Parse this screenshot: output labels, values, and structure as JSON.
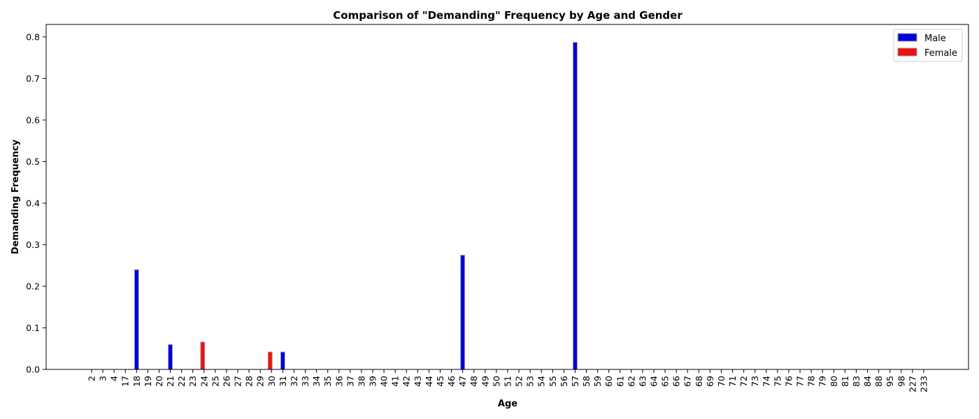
{
  "chart_data": {
    "type": "bar",
    "title": "Comparison of \"Demanding\" Frequency by Age and Gender",
    "xlabel": "Age",
    "ylabel": "Demanding Frequency",
    "categories": [
      "2",
      "3",
      "4",
      "17",
      "18",
      "19",
      "20",
      "21",
      "22",
      "23",
      "24",
      "25",
      "26",
      "27",
      "28",
      "29",
      "30",
      "31",
      "32",
      "33",
      "34",
      "35",
      "36",
      "37",
      "38",
      "39",
      "40",
      "41",
      "42",
      "43",
      "44",
      "45",
      "46",
      "47",
      "48",
      "49",
      "50",
      "51",
      "52",
      "53",
      "54",
      "55",
      "56",
      "57",
      "58",
      "59",
      "60",
      "61",
      "62",
      "63",
      "64",
      "65",
      "66",
      "67",
      "68",
      "69",
      "70",
      "71",
      "72",
      "73",
      "74",
      "75",
      "76",
      "77",
      "78",
      "79",
      "80",
      "81",
      "83",
      "84",
      "88",
      "95",
      "98",
      "227",
      "233"
    ],
    "series": [
      {
        "name": "Male",
        "color": "#0000dd",
        "values": {
          "18": 0.24,
          "21": 0.06,
          "31": 0.042,
          "47": 0.275,
          "57": 0.787
        }
      },
      {
        "name": "Female",
        "color": "#ee1111",
        "values": {
          "24": 0.066,
          "30": 0.042
        }
      }
    ],
    "ylim": [
      0,
      0.83
    ],
    "yticks": [
      "0.0",
      "0.1",
      "0.2",
      "0.3",
      "0.4",
      "0.5",
      "0.6",
      "0.7",
      "0.8"
    ],
    "grid": false,
    "legend_position": "top-right"
  }
}
